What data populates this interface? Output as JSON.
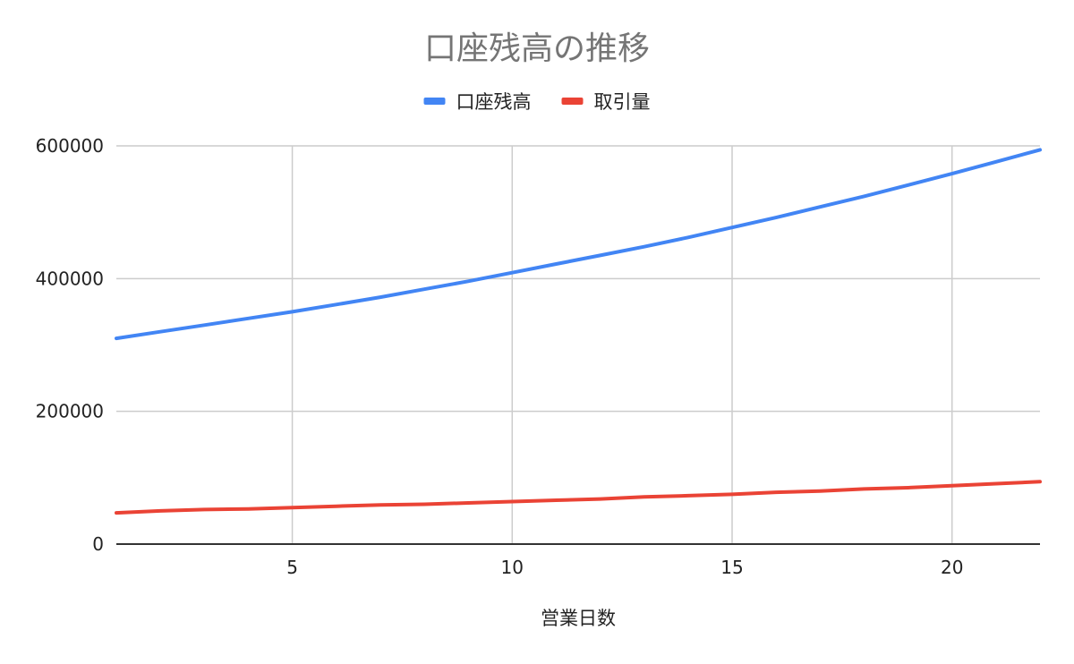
{
  "chart_data": {
    "type": "line",
    "title": "口座残高の推移",
    "xlabel": "営業日数",
    "ylabel": "",
    "xlim": [
      1,
      22
    ],
    "ylim": [
      0,
      600000
    ],
    "x_ticks": [
      5,
      10,
      15,
      20
    ],
    "y_ticks": [
      0,
      200000,
      400000,
      600000
    ],
    "grid": true,
    "legend_position": "top",
    "x": [
      1,
      2,
      3,
      4,
      5,
      6,
      7,
      8,
      9,
      10,
      11,
      12,
      13,
      14,
      15,
      16,
      17,
      18,
      19,
      20,
      21,
      22
    ],
    "series": [
      {
        "name": "口座残高",
        "color": "#4285f4",
        "values": [
          310000,
          320000,
          330000,
          340000,
          350000,
          361000,
          372000,
          384000,
          396000,
          409000,
          422000,
          435000,
          448000,
          462000,
          477000,
          492000,
          508000,
          524000,
          541000,
          558000,
          576000,
          594000
        ]
      },
      {
        "name": "取引量",
        "color": "#ea4335",
        "values": [
          47000,
          50000,
          52000,
          53000,
          55000,
          57000,
          59000,
          60000,
          62000,
          64000,
          66000,
          68000,
          71000,
          73000,
          75000,
          78000,
          80000,
          83000,
          85000,
          88000,
          91000,
          94000
        ]
      }
    ]
  }
}
